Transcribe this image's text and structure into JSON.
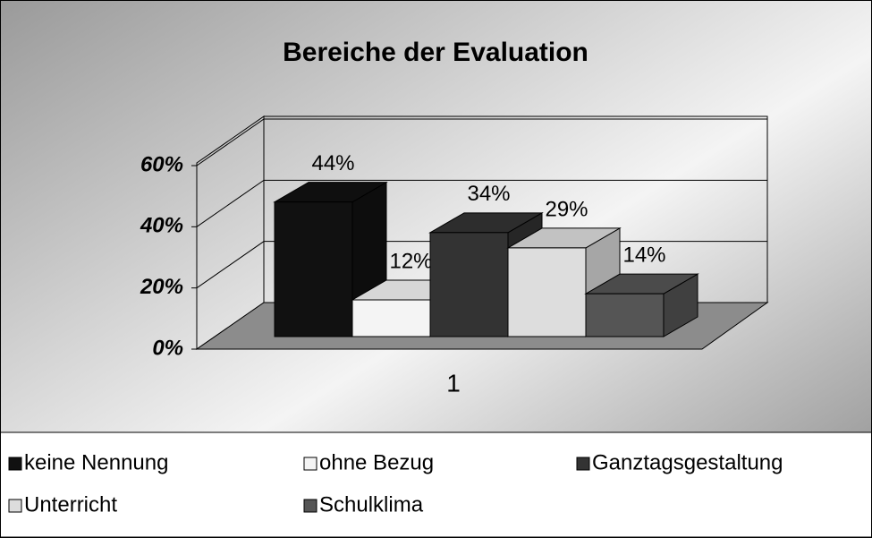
{
  "chart_data": {
    "type": "bar3d",
    "title": "Bereiche der Evaluation",
    "categories": [
      "1"
    ],
    "series": [
      {
        "name": "keine Nennung",
        "color": "#111111",
        "values": [
          44
        ],
        "value_labels": [
          "44%"
        ]
      },
      {
        "name": "ohne Bezug",
        "color": "#f4f4f4",
        "values": [
          12
        ],
        "value_labels": [
          "12%"
        ]
      },
      {
        "name": "Ganztagsgestaltung",
        "color": "#333333",
        "values": [
          34
        ],
        "value_labels": [
          "34%"
        ]
      },
      {
        "name": "Unterricht",
        "color": "#dddddd",
        "values": [
          29
        ],
        "value_labels": [
          "29%"
        ]
      },
      {
        "name": "Schulklima",
        "color": "#555555",
        "values": [
          14
        ],
        "value_labels": [
          "14%"
        ]
      }
    ],
    "ylim": [
      0,
      60
    ],
    "yticks": [
      {
        "value": 0,
        "label": "0%"
      },
      {
        "value": 20,
        "label": "20%"
      },
      {
        "value": 40,
        "label": "40%"
      },
      {
        "value": 60,
        "label": "60%"
      }
    ],
    "grid": true,
    "legend": "bottom"
  }
}
